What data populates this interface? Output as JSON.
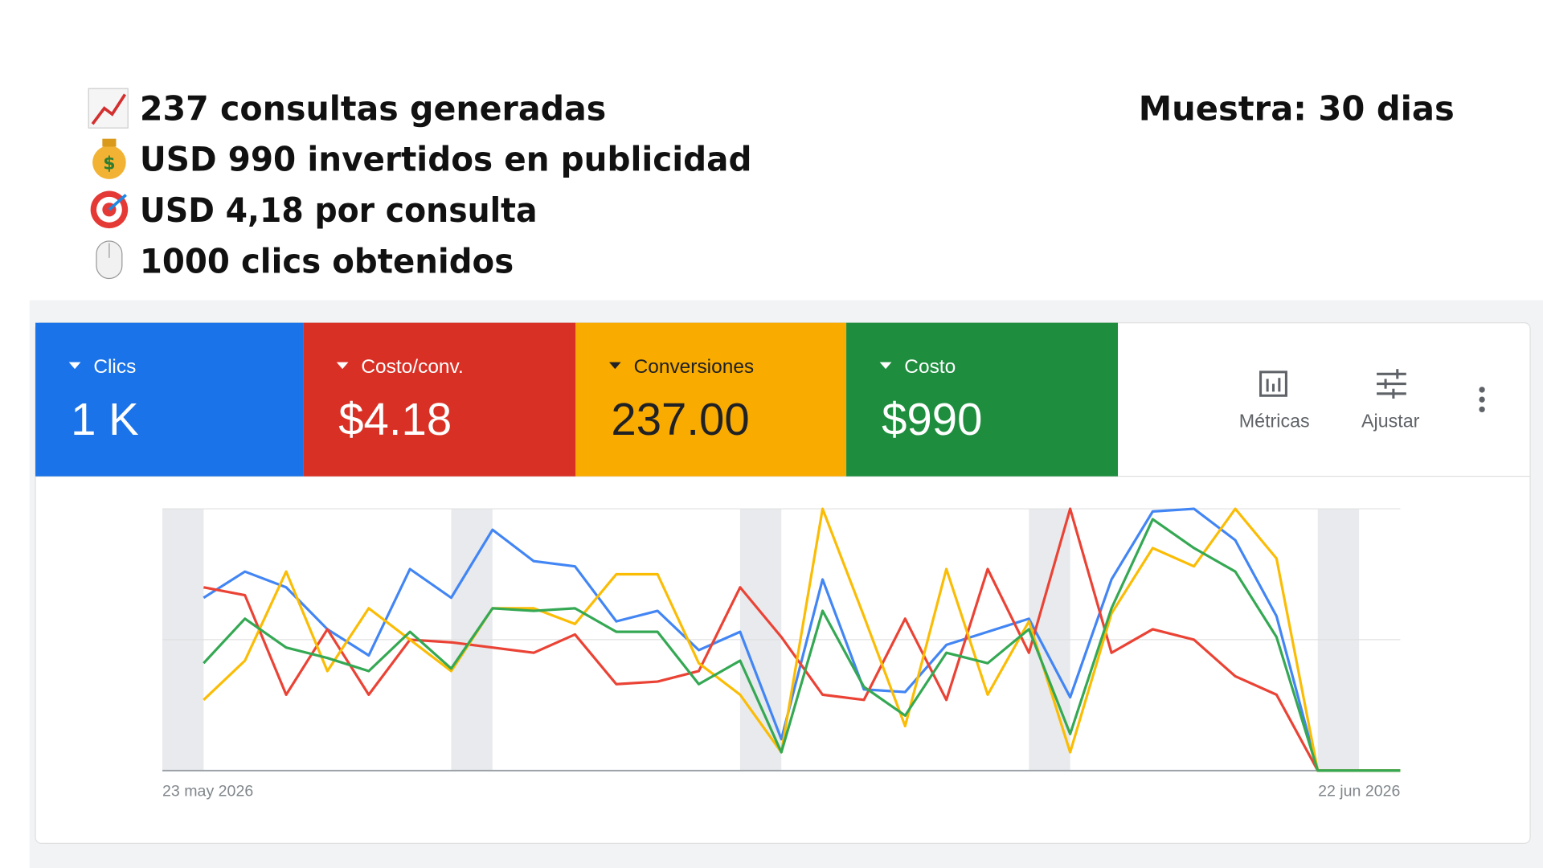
{
  "header": {
    "highlights": [
      "237 consultas generadas",
      "USD 990 invertidos en publicidad",
      "USD 4,18 por consulta",
      "1000 clics obtenidos"
    ],
    "sample": "Muestra: 30 dias"
  },
  "scorecards": [
    {
      "label": "Clics",
      "value": "1 K",
      "color": "#1a73e8",
      "text_color": "#ffffff"
    },
    {
      "label": "Costo/conv.",
      "value": "$4.18",
      "color": "#d93025",
      "text_color": "#ffffff"
    },
    {
      "label": "Conversiones",
      "value": "237.00",
      "color": "#f9ab00",
      "text_color": "#202124"
    },
    {
      "label": "Costo",
      "value": "$990",
      "color": "#1e8e3e",
      "text_color": "#ffffff"
    }
  ],
  "toolbar": {
    "buttons": [
      "Métricas",
      "Ajustar"
    ]
  },
  "chart_data": {
    "type": "line",
    "categories": [
      "23 may 2026",
      null,
      null,
      null,
      null,
      null,
      null,
      null,
      null,
      null,
      null,
      null,
      null,
      null,
      null,
      null,
      null,
      null,
      null,
      null,
      null,
      null,
      null,
      null,
      null,
      null,
      null,
      null,
      null,
      null,
      "22 jun 2026"
    ],
    "ylim": [
      0,
      100
    ],
    "series": [
      {
        "name": "Clics",
        "color": "#4285f4",
        "values": [
          null,
          66,
          76,
          70,
          54,
          44,
          77,
          66,
          92,
          80,
          78,
          57,
          61,
          46,
          53,
          12,
          73,
          31,
          30,
          48,
          53,
          58,
          28,
          73,
          99,
          100,
          88,
          59,
          0,
          0,
          0
        ]
      },
      {
        "name": "Costo/conv.",
        "color": "#ea4335",
        "values": [
          null,
          70,
          67,
          29,
          54,
          29,
          50,
          49,
          47,
          45,
          52,
          33,
          34,
          38,
          70,
          51,
          29,
          27,
          58,
          27,
          77,
          45,
          100,
          45,
          54,
          50,
          36,
          29,
          0,
          0,
          0
        ]
      },
      {
        "name": "Conversiones",
        "color": "#fbbc04",
        "values": [
          null,
          27,
          42,
          76,
          38,
          62,
          50,
          38,
          62,
          62,
          56,
          75,
          75,
          41,
          29,
          7,
          100,
          59,
          17,
          77,
          29,
          57,
          7,
          60,
          85,
          78,
          100,
          81,
          0,
          0,
          0
        ]
      },
      {
        "name": "Costo",
        "color": "#34a853",
        "values": [
          null,
          41,
          58,
          47,
          43,
          38,
          53,
          39,
          62,
          61,
          62,
          53,
          53,
          33,
          42,
          7,
          61,
          32,
          21,
          45,
          41,
          54,
          14,
          62,
          96,
          85,
          76,
          51,
          0,
          0,
          0
        ]
      }
    ]
  }
}
